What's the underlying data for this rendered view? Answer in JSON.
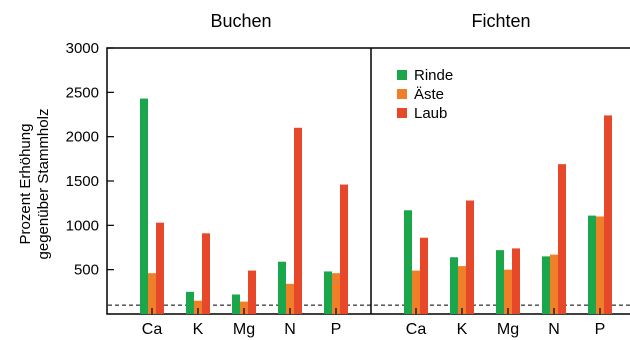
{
  "chart_data": {
    "type": "bar",
    "ylabel_lines": [
      "Prozent Erhöhung",
      "gegenüber Stammholz"
    ],
    "ylim": [
      0,
      3000
    ],
    "yticks": [
      500,
      1000,
      1500,
      2000,
      2500,
      3000
    ],
    "reference_line": 100,
    "grid": false,
    "legend_position": "top-left of right panel",
    "categories": [
      "Ca",
      "K",
      "Mg",
      "N",
      "P"
    ],
    "series_names": [
      "Rinde",
      "Äste",
      "Laub"
    ],
    "colors": {
      "Rinde": "#1aa64a",
      "Äste": "#f07f2a",
      "Laub": "#e8482a"
    },
    "panels": [
      {
        "title": "Buchen",
        "series": [
          {
            "name": "Rinde",
            "values": [
              2430,
              250,
              220,
              590,
              480
            ]
          },
          {
            "name": "Äste",
            "values": [
              460,
              150,
              140,
              340,
              460
            ]
          },
          {
            "name": "Laub",
            "values": [
              1030,
              910,
              490,
              2100,
              1460
            ]
          }
        ]
      },
      {
        "title": "Fichten",
        "series": [
          {
            "name": "Rinde",
            "values": [
              1170,
              640,
              720,
              650,
              1110
            ]
          },
          {
            "name": "Äste",
            "values": [
              490,
              540,
              500,
              670,
              1100
            ]
          },
          {
            "name": "Laub",
            "values": [
              860,
              1280,
              740,
              1690,
              2240
            ]
          }
        ]
      }
    ]
  }
}
